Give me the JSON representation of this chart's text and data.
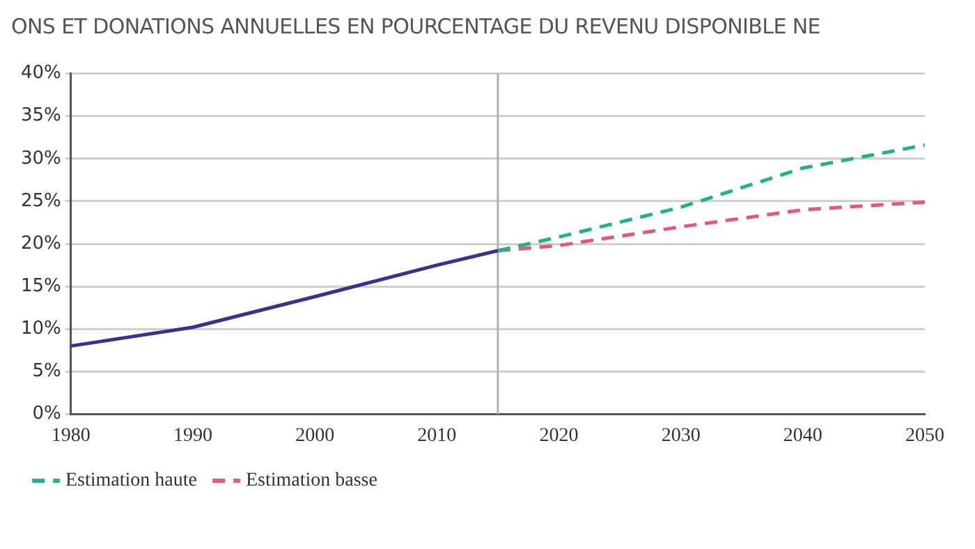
{
  "chart_data": {
    "type": "line",
    "title": "ONS ET DONATIONS ANNUELLES EN POURCENTAGE DU REVENU DISPONIBLE NE",
    "series": [
      {
        "color": "#3d2f8a",
        "x": [
          1980,
          1990,
          2000,
          2010,
          2015
        ],
        "values": [
          8,
          10.2,
          13.8,
          17.5,
          19.2
        ],
        "line_style": "solid"
      },
      {
        "name": "Estimation haute",
        "color": "#26b08a",
        "x": [
          2015,
          2020,
          2030,
          2040,
          2050
        ],
        "values": [
          19.2,
          20.8,
          24.3,
          28.9,
          31.6
        ],
        "line_style": "dashed"
      },
      {
        "name": "Estimation basse",
        "color": "#e05a7a",
        "x": [
          2015,
          2020,
          2030,
          2040,
          2050
        ],
        "values": [
          19.2,
          19.8,
          22,
          24,
          24.9
        ],
        "line_style": "dashed"
      }
    ],
    "xlim": [
      1980,
      2050
    ],
    "xticks": [
      1980,
      1990,
      2000,
      2010,
      2020,
      2030,
      2040,
      2050
    ],
    "ylim": [
      0,
      40
    ],
    "yticks": [
      {
        "value": 0,
        "label": "0%"
      },
      {
        "value": 5,
        "label": "5%"
      },
      {
        "value": 10,
        "label": "10%"
      },
      {
        "value": 15,
        "label": "15%"
      },
      {
        "value": 20,
        "label": "20%"
      },
      {
        "value": 25,
        "label": "25%"
      },
      {
        "value": 30,
        "label": "30%"
      },
      {
        "value": 35,
        "label": "35%"
      },
      {
        "value": 40,
        "label": "40%"
      }
    ],
    "ref_lines": [
      {
        "axis": "x",
        "value": 2015,
        "color": "#b0b0b0"
      }
    ],
    "grid": "y",
    "legend": "bottom",
    "marker": "none"
  }
}
